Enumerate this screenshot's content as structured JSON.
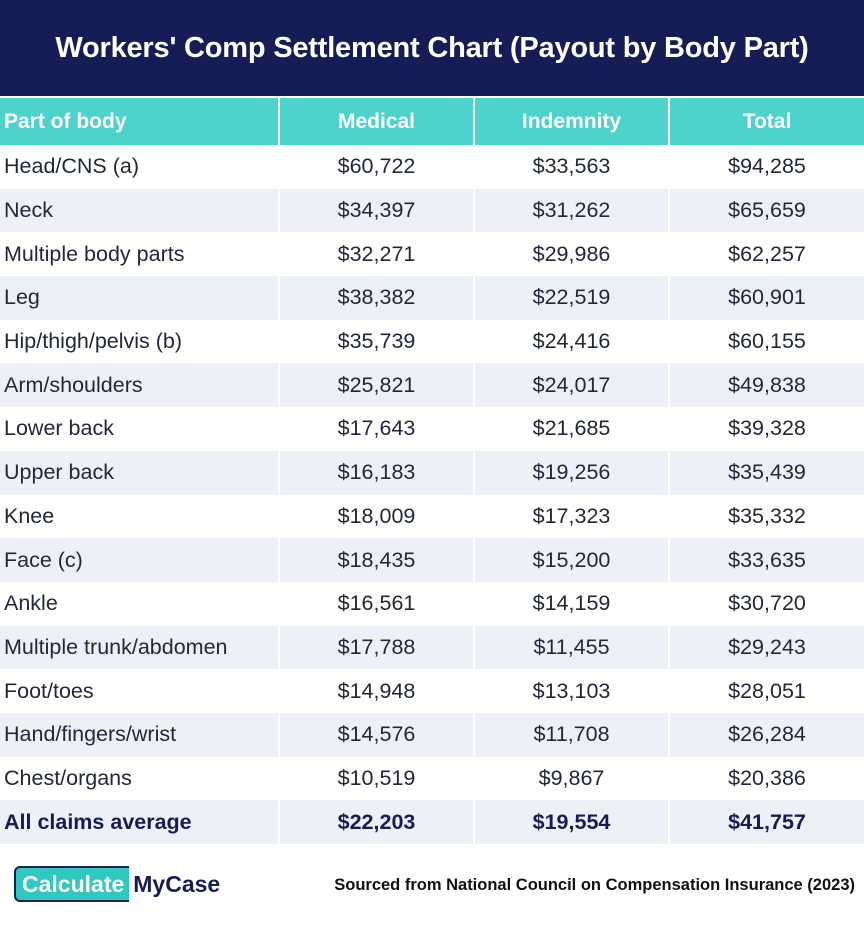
{
  "title": "Workers' Comp Settlement Chart (Payout by Body Part)",
  "chart_data": {
    "type": "table",
    "title": "Workers' Comp Settlement Chart (Payout by Body Part)",
    "columns": [
      "Part of body",
      "Medical",
      "Indemnity",
      "Total"
    ],
    "rows": [
      [
        "Head/CNS (a)",
        "$60,722",
        "$33,563",
        "$94,285"
      ],
      [
        "Neck",
        "$34,397",
        "$31,262",
        "$65,659"
      ],
      [
        "Multiple body parts",
        "$32,271",
        "$29,986",
        "$62,257"
      ],
      [
        "Leg",
        "$38,382",
        "$22,519",
        "$60,901"
      ],
      [
        "Hip/thigh/pelvis (b)",
        "$35,739",
        "$24,416",
        "$60,155"
      ],
      [
        "Arm/shoulders",
        "$25,821",
        "$24,017",
        "$49,838"
      ],
      [
        "Lower back",
        "$17,643",
        "$21,685",
        "$39,328"
      ],
      [
        "Upper back",
        "$16,183",
        "$19,256",
        "$35,439"
      ],
      [
        "Knee",
        "$18,009",
        "$17,323",
        "$35,332"
      ],
      [
        "Face (c)",
        "$18,435",
        "$15,200",
        "$33,635"
      ],
      [
        "Ankle",
        "$16,561",
        "$14,159",
        "$30,720"
      ],
      [
        "Multiple trunk/abdomen",
        "$17,788",
        "$11,455",
        "$29,243"
      ],
      [
        "Foot/toes",
        "$14,948",
        "$13,103",
        "$28,051"
      ],
      [
        "Hand/fingers/wrist",
        "$14,576",
        "$11,708",
        "$26,284"
      ],
      [
        "Chest/organs",
        "$10,519",
        "$9,867",
        "$20,386"
      ]
    ],
    "summary_row": [
      "All claims average",
      "$22,203",
      "$19,554",
      "$41,757"
    ]
  },
  "footer": {
    "logo_part1": "Calculate",
    "logo_part2": "MyCase",
    "source": "Sourced from National Council on Compensation Insurance (2023)"
  },
  "colors": {
    "header_bg": "#161c56",
    "column_header_bg": "#4dd3cb",
    "stripe": "#eef0f8",
    "logo_accent": "#2fc9c0"
  }
}
